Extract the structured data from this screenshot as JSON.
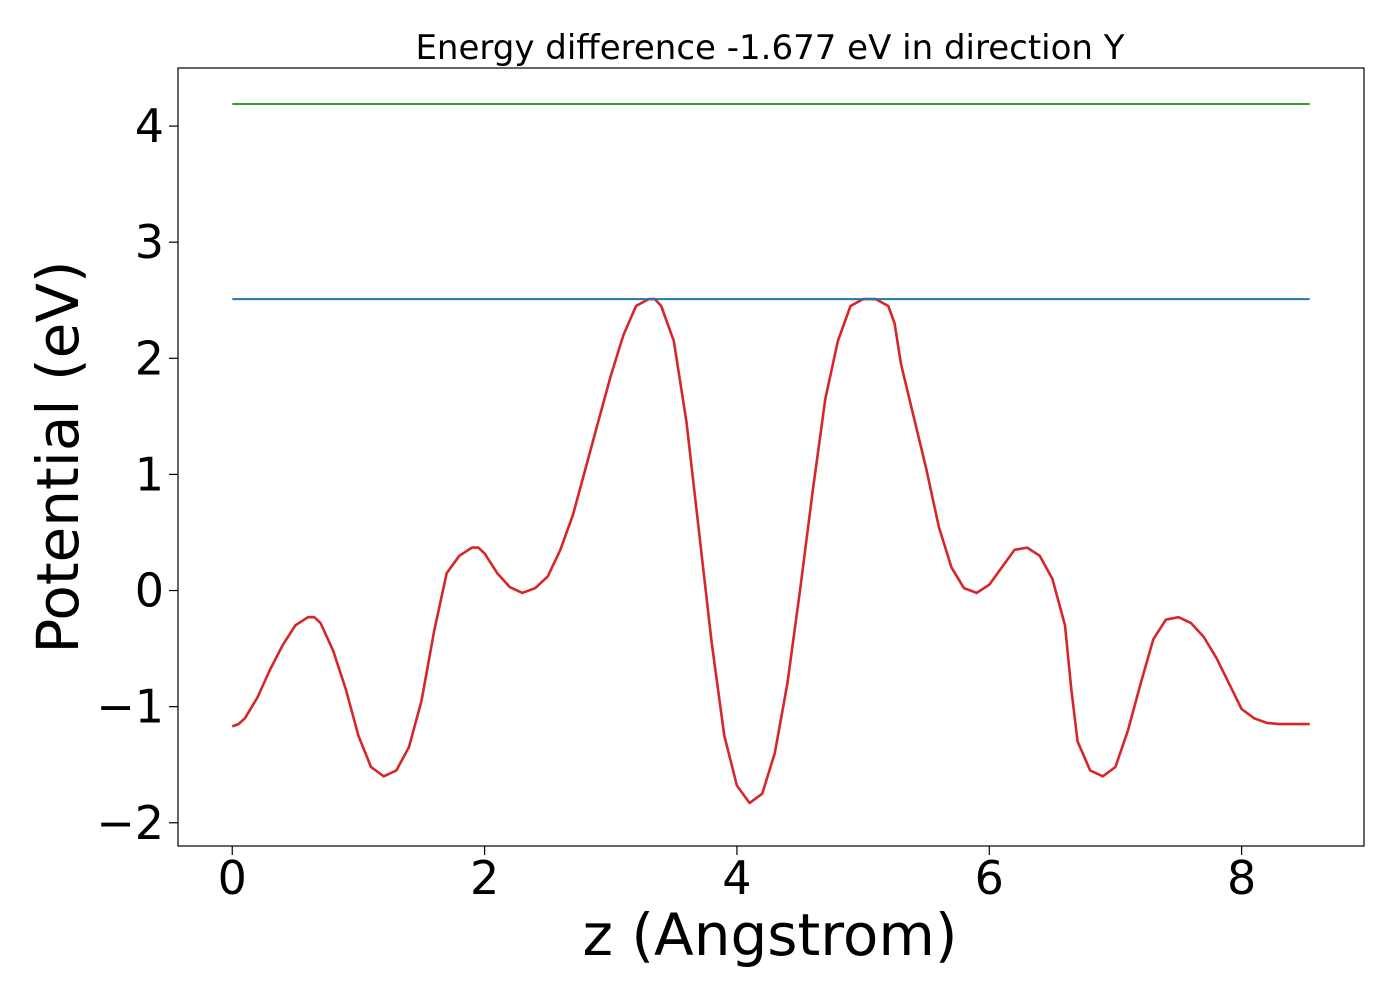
{
  "chart_data": {
    "type": "line",
    "title": "Energy difference -1.677 eV in direction Y",
    "xlabel": "z (Angstrom)",
    "ylabel": "Potential (eV)",
    "xlim": [
      -0.43,
      8.97
    ],
    "ylim": [
      -2.2,
      4.5
    ],
    "xticks": [
      0,
      2,
      4,
      6,
      8
    ],
    "xtick_labels": [
      "0",
      "2",
      "4",
      "6",
      "8"
    ],
    "yticks": [
      -2,
      -1,
      0,
      1,
      2,
      3,
      4
    ],
    "ytick_labels": [
      "−2",
      "−1",
      "0",
      "1",
      "2",
      "3",
      "4"
    ],
    "grid": false,
    "series": [
      {
        "color": "#d62728",
        "x": [
          0,
          0.05,
          0.1,
          0.2,
          0.3,
          0.4,
          0.5,
          0.6,
          0.65,
          0.7,
          0.8,
          0.9,
          1.0,
          1.1,
          1.2,
          1.3,
          1.4,
          1.5,
          1.6,
          1.7,
          1.8,
          1.9,
          1.95,
          2.0,
          2.1,
          2.2,
          2.3,
          2.4,
          2.5,
          2.6,
          2.7,
          2.8,
          2.9,
          3.0,
          3.1,
          3.2,
          3.3,
          3.35,
          3.4,
          3.5,
          3.6,
          3.7,
          3.8,
          3.9,
          4.0,
          4.1,
          4.2,
          4.3,
          4.4,
          4.5,
          4.6,
          4.7,
          4.8,
          4.9,
          5.0,
          5.1,
          5.2,
          5.25,
          5.3,
          5.4,
          5.5,
          5.6,
          5.7,
          5.8,
          5.9,
          6.0,
          6.1,
          6.2,
          6.3,
          6.4,
          6.5,
          6.6,
          6.65,
          6.7,
          6.8,
          6.9,
          7.0,
          7.1,
          7.2,
          7.3,
          7.4,
          7.5,
          7.6,
          7.7,
          7.8,
          7.9,
          8.0,
          8.1,
          8.2,
          8.3,
          8.4,
          8.5,
          8.54
        ],
        "y": [
          -1.17,
          -1.15,
          -1.1,
          -0.92,
          -0.68,
          -0.47,
          -0.3,
          -0.23,
          -0.23,
          -0.28,
          -0.52,
          -0.85,
          -1.25,
          -1.52,
          -1.6,
          -1.55,
          -1.35,
          -0.95,
          -0.35,
          0.15,
          0.3,
          0.37,
          0.37,
          0.32,
          0.15,
          0.03,
          -0.02,
          0.02,
          0.12,
          0.35,
          0.65,
          1.05,
          1.45,
          1.85,
          2.2,
          2.45,
          2.51,
          2.51,
          2.45,
          2.15,
          1.45,
          0.5,
          -0.45,
          -1.25,
          -1.68,
          -1.83,
          -1.75,
          -1.4,
          -0.8,
          0.0,
          0.85,
          1.65,
          2.15,
          2.45,
          2.51,
          2.51,
          2.45,
          2.3,
          1.95,
          1.5,
          1.05,
          0.55,
          0.2,
          0.02,
          -0.02,
          0.05,
          0.2,
          0.35,
          0.37,
          0.3,
          0.1,
          -0.3,
          -0.85,
          -1.3,
          -1.55,
          -1.6,
          -1.52,
          -1.2,
          -0.8,
          -0.42,
          -0.25,
          -0.23,
          -0.28,
          -0.4,
          -0.58,
          -0.8,
          -1.02,
          -1.1,
          -1.14,
          -1.15,
          -1.15,
          -1.15,
          -1.15
        ]
      },
      {
        "color": "#1f77b4",
        "x": [
          0,
          8.54
        ],
        "y": [
          2.51,
          2.51
        ]
      },
      {
        "color": "#2ca02c",
        "x": [
          0,
          8.54
        ],
        "y": [
          4.19,
          4.19
        ]
      }
    ]
  }
}
